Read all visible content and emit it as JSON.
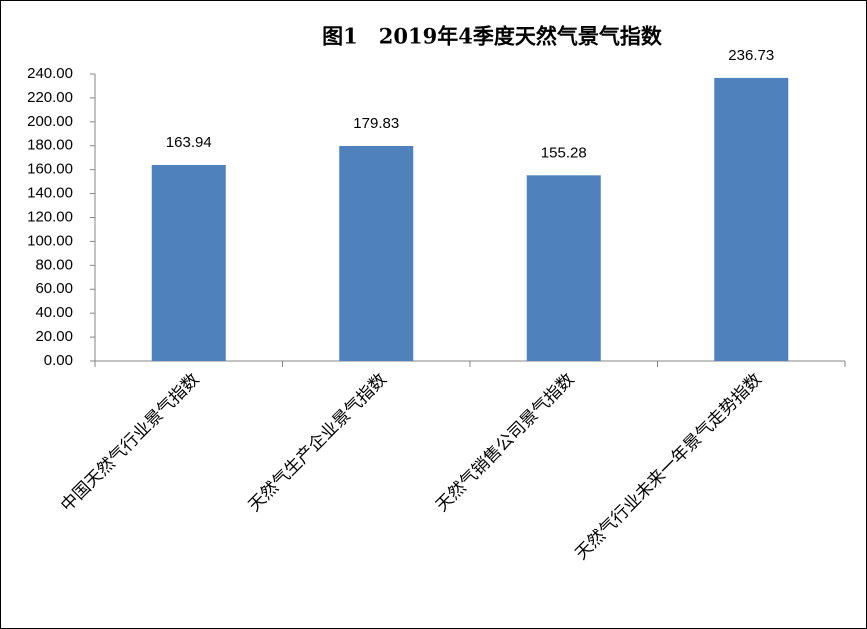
{
  "chart_data": {
    "type": "bar",
    "title": "图1　2019年4季度天然气景气指数",
    "categories": [
      "中国天然气行业景气指数",
      "天然气生产企业景气指数",
      "天然气销售公司景气指数",
      "天然气行业未来一年景气走势指数"
    ],
    "values": [
      163.94,
      179.83,
      155.28,
      236.73
    ],
    "color": "#4f81bd",
    "ylim": [
      0,
      240
    ],
    "yticks": [
      {
        "value": 0,
        "label": "0.00"
      },
      {
        "value": 20,
        "label": "20.00"
      },
      {
        "value": 40,
        "label": "40.00"
      },
      {
        "value": 60,
        "label": "60.00"
      },
      {
        "value": 80,
        "label": "80.00"
      },
      {
        "value": 100,
        "label": "100.00"
      },
      {
        "value": 120,
        "label": "120.00"
      },
      {
        "value": 140,
        "label": "140.00"
      },
      {
        "value": 160,
        "label": "160.00"
      },
      {
        "value": 180,
        "label": "180.00"
      },
      {
        "value": 200,
        "label": "200.00"
      },
      {
        "value": 220,
        "label": "220.00"
      },
      {
        "value": 240,
        "label": "240.00"
      }
    ],
    "grid": false
  }
}
